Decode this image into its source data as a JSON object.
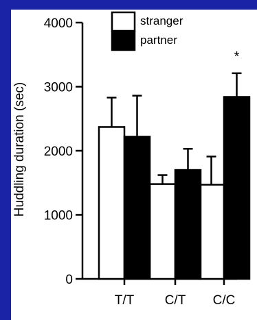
{
  "chart_data": {
    "type": "bar",
    "categories": [
      "T/T",
      "C/T",
      "C/C"
    ],
    "series": [
      {
        "name": "stranger",
        "values": [
          2370,
          1480,
          1470
        ],
        "errors": [
          460,
          140,
          440
        ],
        "color": "#ffffff"
      },
      {
        "name": "partner",
        "values": [
          2220,
          1700,
          2840
        ],
        "errors": [
          640,
          330,
          370
        ],
        "color": "#000000"
      }
    ],
    "xlabel": "",
    "ylabel": "Huddling duration (sec)",
    "ylim": [
      0,
      4000
    ],
    "yticks": [
      0,
      1000,
      2000,
      3000,
      4000
    ],
    "grid": false,
    "legend": {
      "position": "top-center",
      "entries": [
        "stranger",
        "partner"
      ]
    },
    "annotations": [
      {
        "text": "*",
        "category": "C/C",
        "series": "partner"
      }
    ]
  },
  "colors": {
    "background": "#1a23a6",
    "panel": "#ffffff",
    "ink": "#000000"
  }
}
